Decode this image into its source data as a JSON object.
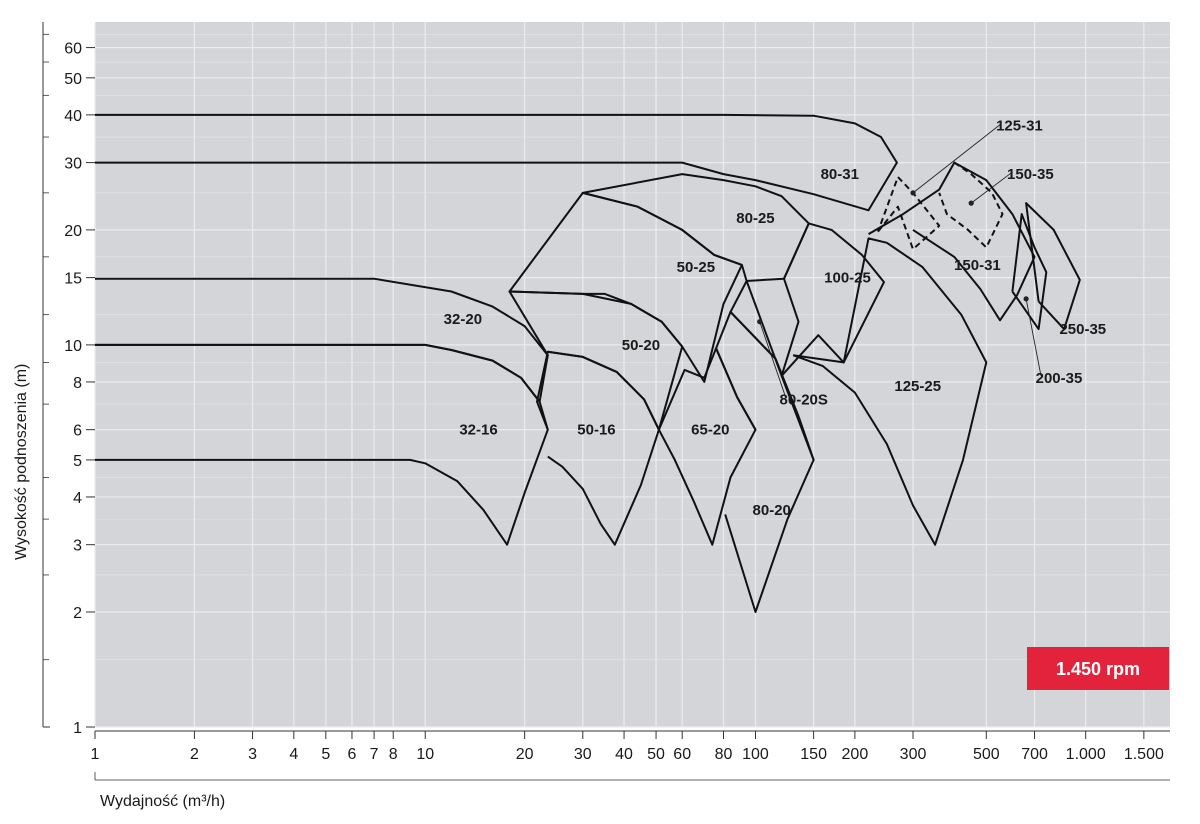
{
  "chart_data": {
    "type": "line",
    "xscale": "log",
    "yscale": "log",
    "xlim": [
      1,
      1800
    ],
    "ylim": [
      1,
      70
    ],
    "xlabel": "Wydajność (m³/h)",
    "ylabel": "Wysokość podnoszenia (m)",
    "x_ticks": [
      1,
      2,
      3,
      4,
      5,
      6,
      7,
      8,
      10,
      20,
      30,
      40,
      50,
      60,
      80,
      100,
      150,
      200,
      300,
      500,
      700,
      1000,
      1500
    ],
    "x_tick_labels": [
      "1",
      "2",
      "3",
      "4",
      "5",
      "6",
      "7",
      "8",
      "10",
      "20",
      "30",
      "40",
      "50",
      "60",
      "80",
      "100",
      "150",
      "200",
      "300",
      "500",
      "700",
      "1.000",
      "1.500"
    ],
    "y_ticks": [
      1,
      2,
      3,
      4,
      5,
      6,
      8,
      10,
      15,
      20,
      30,
      40,
      50,
      60
    ],
    "y_tick_labels": [
      "1",
      "2",
      "3",
      "4",
      "5",
      "6",
      "8",
      "10",
      "15",
      "20",
      "30",
      "40",
      "50",
      "60"
    ],
    "grid": true,
    "speed_badge": "1.450 rpm",
    "colors": {
      "plot_background": "#d4d5d9",
      "grid": "#ececee",
      "curve": "#111111",
      "badge": "#e3223b"
    },
    "series": [
      {
        "name": "32-16",
        "outline": [
          [
            1,
            5
          ],
          [
            9,
            5
          ],
          [
            10,
            4.9
          ],
          [
            12.5,
            4.4
          ],
          [
            15,
            3.7
          ],
          [
            17.7,
            3.0
          ],
          [
            20,
            4.1
          ],
          [
            23.5,
            6.0
          ],
          [
            22.2,
            7.1
          ],
          [
            19.5,
            8.2
          ],
          [
            16,
            9.1
          ],
          [
            12,
            9.7
          ],
          [
            10,
            10
          ],
          [
            1,
            10
          ]
        ],
        "label_at": [
          14.5,
          6.0
        ]
      },
      {
        "name": "32-20",
        "outline": [
          [
            1,
            10
          ],
          [
            10,
            10
          ],
          [
            12,
            9.7
          ],
          [
            16,
            9.1
          ],
          [
            19.5,
            8.2
          ],
          [
            22.2,
            7.1
          ],
          [
            23.5,
            9.4
          ],
          [
            20,
            11.2
          ],
          [
            16,
            12.6
          ],
          [
            12,
            13.8
          ],
          [
            7,
            14.9
          ],
          [
            5.5,
            14.9
          ],
          [
            1,
            14.9
          ]
        ],
        "label_at": [
          13,
          11.7
        ]
      },
      {
        "name": "50-16",
        "outline": [
          [
            23.5,
            5.1
          ],
          [
            26,
            4.8
          ],
          [
            30,
            4.2
          ],
          [
            34,
            3.4
          ],
          [
            37.5,
            3.0
          ],
          [
            45,
            4.3
          ],
          [
            51,
            6.0
          ],
          [
            46,
            7.2
          ],
          [
            38,
            8.5
          ],
          [
            30,
            9.3
          ],
          [
            23.5,
            9.6
          ],
          [
            21.8,
            7.1
          ],
          [
            23.5,
            6.0
          ]
        ],
        "label_at": [
          33,
          6.0
        ]
      },
      {
        "name": "50-20",
        "outline": [
          [
            23.5,
            9.6
          ],
          [
            30,
            9.3
          ],
          [
            38,
            8.5
          ],
          [
            46,
            7.2
          ],
          [
            51,
            6.0
          ],
          [
            60,
            9.9
          ],
          [
            52,
            11.5
          ],
          [
            42,
            12.8
          ],
          [
            30,
            13.6
          ],
          [
            18,
            13.8
          ],
          [
            23.5,
            9.4
          ]
        ],
        "label_at": [
          45,
          10.0
        ]
      },
      {
        "name": "65-20",
        "outline": [
          [
            51,
            6.0
          ],
          [
            57,
            5.0
          ],
          [
            65,
            3.9
          ],
          [
            74,
            3.0
          ],
          [
            84,
            4.5
          ],
          [
            100,
            6.0
          ],
          [
            88,
            7.3
          ],
          [
            76,
            9.8
          ],
          [
            70,
            8.2
          ],
          [
            61,
            8.6
          ],
          [
            51,
            6.0
          ]
        ],
        "label_at": [
          73,
          6.0
        ]
      },
      {
        "name": "50-25",
        "outline": [
          [
            60,
            9.9
          ],
          [
            52,
            11.5
          ],
          [
            42,
            12.8
          ],
          [
            35,
            13.6
          ],
          [
            30,
            13.6
          ],
          [
            18,
            13.8
          ],
          [
            30,
            25
          ],
          [
            44,
            23
          ],
          [
            60,
            20
          ],
          [
            75,
            17.2
          ],
          [
            91,
            16.2
          ],
          [
            80,
            12.8
          ],
          [
            70,
            8.0
          ],
          [
            60,
            9.9
          ]
        ],
        "label_at": [
          66,
          16.0
        ]
      },
      {
        "name": "80-20",
        "outline": [
          [
            81,
            3.6
          ],
          [
            100,
            2.0
          ],
          [
            125,
            3.5
          ],
          [
            150,
            5.0
          ],
          [
            135,
            6.5
          ],
          [
            115,
            9.2
          ],
          [
            84,
            12.2
          ],
          [
            76,
            9.8
          ],
          [
            88,
            7.3
          ],
          [
            100,
            6.0
          ]
        ],
        "label_at": [
          112,
          3.7
        ]
      },
      {
        "name": "80-20S",
        "outline": [
          [
            84,
            12.2
          ],
          [
            115,
            9.2
          ],
          [
            135,
            6.5
          ],
          [
            150,
            5.0
          ],
          [
            120,
            8.3
          ],
          [
            94,
            14.7
          ],
          [
            84,
            12.2
          ]
        ],
        "label_at": [
          140,
          7.2
        ]
      },
      {
        "name": "80-25",
        "outline": [
          [
            91,
            16.2
          ],
          [
            75,
            17.2
          ],
          [
            60,
            20
          ],
          [
            44,
            23
          ],
          [
            30,
            25
          ],
          [
            60,
            28
          ],
          [
            80,
            27
          ],
          [
            100,
            26
          ],
          [
            120,
            24.5
          ],
          [
            145,
            20.8
          ],
          [
            122,
            14.9
          ],
          [
            94,
            14.7
          ],
          [
            91,
            16.2
          ]
        ],
        "label_at": [
          100,
          21.5
        ]
      },
      {
        "name": "80-31",
        "outline": [
          [
            1,
            30
          ],
          [
            60,
            30
          ],
          [
            80,
            28
          ],
          [
            100,
            27
          ],
          [
            150,
            24.8
          ],
          [
            220,
            22.5
          ],
          [
            268,
            30
          ],
          [
            240,
            35
          ],
          [
            200,
            38
          ],
          [
            150,
            39.8
          ],
          [
            80,
            40
          ],
          [
            1,
            40
          ]
        ],
        "label_at": [
          180,
          28
        ]
      },
      {
        "name": "100-25",
        "outline": [
          [
            122,
            14.9
          ],
          [
            145,
            20.8
          ],
          [
            170,
            20
          ],
          [
            210,
            17.2
          ],
          [
            245,
            14.6
          ],
          [
            185,
            9.0
          ],
          [
            155,
            10.6
          ],
          [
            120,
            8.3
          ],
          [
            135,
            11.5
          ],
          [
            122,
            14.9
          ]
        ],
        "label_at": [
          190,
          15
        ]
      },
      {
        "name": "125-25",
        "outline": [
          [
            130,
            9.4
          ],
          [
            160,
            8.8
          ],
          [
            200,
            7.5
          ],
          [
            250,
            5.5
          ],
          [
            300,
            3.8
          ],
          [
            350,
            3.0
          ],
          [
            425,
            5.0
          ],
          [
            500,
            9.0
          ],
          [
            420,
            12
          ],
          [
            320,
            16
          ],
          [
            250,
            18.5
          ],
          [
            220,
            19
          ],
          [
            185,
            9.0
          ],
          [
            130,
            9.4
          ]
        ],
        "label_at": [
          310,
          7.8
        ]
      },
      {
        "name": "125-31",
        "outline": [
          [
            235,
            19.8
          ],
          [
            270,
            23
          ],
          [
            300,
            17.8
          ],
          [
            360,
            20.5
          ],
          [
            300,
            25
          ],
          [
            270,
            27.5
          ],
          [
            235,
            19.8
          ]
        ],
        "label_at": [
          630,
          37.5
        ]
      },
      {
        "name": "150-35",
        "outline": [
          [
            400,
            30
          ],
          [
            450,
            28
          ],
          [
            520,
            25
          ],
          [
            560,
            22
          ],
          [
            500,
            18
          ],
          [
            440,
            20
          ],
          [
            380,
            22
          ],
          [
            360,
            25
          ]
        ],
        "label_at": [
          680,
          28
        ]
      },
      {
        "name": "150-31",
        "outline": [
          [
            220,
            19.5
          ],
          [
            280,
            22
          ],
          [
            360,
            25.5
          ],
          [
            400,
            30
          ],
          [
            500,
            27
          ],
          [
            600,
            22
          ],
          [
            700,
            17
          ],
          [
            620,
            13.5
          ],
          [
            550,
            11.6
          ],
          [
            480,
            14
          ],
          [
            400,
            17
          ],
          [
            300,
            20
          ]
        ],
        "label_at": [
          470,
          16.2
        ]
      },
      {
        "name": "200-35",
        "outline": [
          [
            600,
            13.8
          ],
          [
            720,
            11.0
          ],
          [
            760,
            15.5
          ],
          [
            700,
            18
          ],
          [
            640,
            22
          ],
          [
            600,
            13.8
          ]
        ],
        "label_at": [
          830,
          8.2
        ]
      },
      {
        "name": "250-35",
        "outline": [
          [
            720,
            13
          ],
          [
            860,
            11
          ],
          [
            960,
            14.8
          ],
          [
            800,
            20
          ],
          [
            660,
            23.5
          ],
          [
            720,
            13
          ]
        ],
        "label_at": [
          980,
          11.0
        ]
      }
    ],
    "annotations": [
      {
        "label": "125-31",
        "points_to": [
          300,
          25
        ]
      },
      {
        "label": "150-35",
        "points_to": [
          450,
          23.5
        ]
      },
      {
        "label": "200-35",
        "points_to": [
          660,
          13.2
        ]
      },
      {
        "label": "80-20S",
        "points_to": [
          103,
          11.5
        ]
      }
    ]
  }
}
